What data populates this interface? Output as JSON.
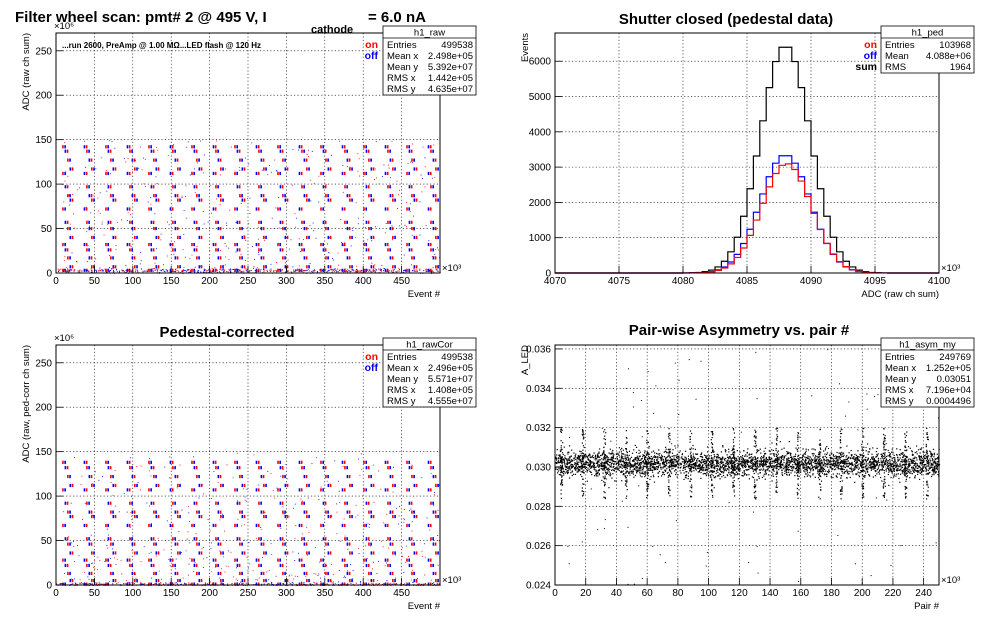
{
  "page": {
    "main_title_prefix": "Filter wheel scan: pmt#   2 @   495 V, I",
    "main_title_sub": "cathode",
    "main_title_suffix": "= 6.0 nA"
  },
  "chart_data": [
    {
      "id": "raw",
      "type": "scatter",
      "title": "",
      "xlabel": "Event #",
      "ylabel": "ADC (raw ch sum)",
      "x_exponent": "×10³",
      "y_exponent": "×10⁶",
      "xlim": [
        0,
        500
      ],
      "ylim": [
        0,
        270
      ],
      "x_ticks": [
        0,
        50,
        100,
        150,
        200,
        250,
        300,
        350,
        400,
        450
      ],
      "y_ticks": [
        0,
        50,
        100,
        150,
        200,
        250
      ],
      "annotation": "...run 2600, PreAmp @ 1.00 MΩ...LED flash @  120 Hz",
      "legend": [
        {
          "label": "on",
          "color": "#ff0000"
        },
        {
          "label": "off",
          "color": "#0000ff"
        }
      ],
      "stats": {
        "name": "h1_raw",
        "rows": [
          [
            "Entries",
            "499538"
          ],
          [
            "Mean x",
            "2.498e+05"
          ],
          [
            "Mean y",
            "5.392e+07"
          ],
          [
            "RMS x",
            "1.442e+05"
          ],
          [
            "RMS y",
            "4.635e+07"
          ]
        ]
      },
      "band_levels": [
        142,
        137,
        127,
        117,
        112,
        97,
        87,
        82,
        72,
        57,
        50,
        40,
        32,
        26,
        17,
        7,
        3
      ],
      "cycle_period": 28,
      "cycle_start": 8
    },
    {
      "id": "ped",
      "type": "line",
      "title": "Shutter closed (pedestal data)",
      "xlabel": "ADC (raw ch sum)",
      "ylabel": "Events",
      "x_exponent": "×10³",
      "xlim": [
        4070,
        4100
      ],
      "ylim": [
        0,
        6800
      ],
      "x_ticks": [
        4070,
        4075,
        4080,
        4085,
        4090,
        4095,
        4100
      ],
      "y_ticks": [
        0,
        1000,
        2000,
        3000,
        4000,
        5000,
        6000
      ],
      "legend": [
        {
          "label": "on",
          "color": "#ff0000"
        },
        {
          "label": "off",
          "color": "#0000ff"
        },
        {
          "label": "sum",
          "color": "#000000"
        }
      ],
      "stats": {
        "name": "h1_ped",
        "rows": [
          [
            "Entries",
            "103968"
          ],
          [
            "Mean",
            "4.088e+06"
          ],
          [
            "RMS",
            "1964"
          ]
        ]
      },
      "series": [
        {
          "name": "sum",
          "color": "#000000",
          "peak": 6450,
          "mean": 4088.0,
          "sigma": 1.95
        },
        {
          "name": "off",
          "color": "#0000ff",
          "peak": 3350,
          "mean": 4088.0,
          "sigma": 1.95
        },
        {
          "name": "on",
          "color": "#ff0000",
          "peak": 3100,
          "mean": 4088.1,
          "sigma": 1.95
        }
      ],
      "bin_width": 0.5
    },
    {
      "id": "raw_cor",
      "type": "scatter",
      "title": "Pedestal-corrected",
      "xlabel": "Event #",
      "ylabel": "ADC (raw, ped-corr ch sum)",
      "x_exponent": "×10³",
      "y_exponent": "×10⁶",
      "xlim": [
        0,
        500
      ],
      "ylim": [
        0,
        270
      ],
      "x_ticks": [
        0,
        50,
        100,
        150,
        200,
        250,
        300,
        350,
        400,
        450
      ],
      "y_ticks": [
        0,
        50,
        100,
        150,
        200,
        250
      ],
      "legend": [
        {
          "label": "on",
          "color": "#ff0000"
        },
        {
          "label": "off",
          "color": "#0000ff"
        }
      ],
      "stats": {
        "name": "h1_rawCor",
        "rows": [
          [
            "Entries",
            "499538"
          ],
          [
            "Mean x",
            "2.496e+05"
          ],
          [
            "Mean y",
            "5.571e+07"
          ],
          [
            "RMS x",
            "1.408e+05"
          ],
          [
            "RMS y",
            "4.555e+07"
          ]
        ]
      },
      "band_levels": [
        138,
        132,
        122,
        112,
        107,
        92,
        82,
        77,
        67,
        52,
        46,
        36,
        28,
        22,
        13,
        5,
        1
      ],
      "cycle_period": 28,
      "cycle_start": 8
    },
    {
      "id": "asym",
      "type": "scatter",
      "title": "Pair-wise Asymmetry vs. pair #",
      "xlabel": "Pair #",
      "ylabel": "A_LED",
      "x_exponent": "×10³",
      "xlim": [
        0,
        250
      ],
      "ylim": [
        0.024,
        0.0362
      ],
      "x_ticks": [
        0,
        20,
        40,
        60,
        80,
        100,
        120,
        140,
        160,
        180,
        200,
        220,
        240
      ],
      "y_ticks": [
        0.024,
        0.026,
        0.028,
        0.03,
        0.032,
        0.034,
        0.036
      ],
      "stats": {
        "name": "h1_asym_my",
        "rows": [
          [
            "Entries",
            "249769"
          ],
          [
            "Mean x",
            "1.252e+05"
          ],
          [
            "Mean y",
            "0.03051"
          ],
          [
            "RMS x",
            "7.196e+04"
          ],
          [
            "RMS y",
            "0.0004496"
          ]
        ]
      },
      "center": 0.0302,
      "band_halfwidth": 0.0006,
      "spike_period": 14,
      "spike_start": 4
    }
  ]
}
